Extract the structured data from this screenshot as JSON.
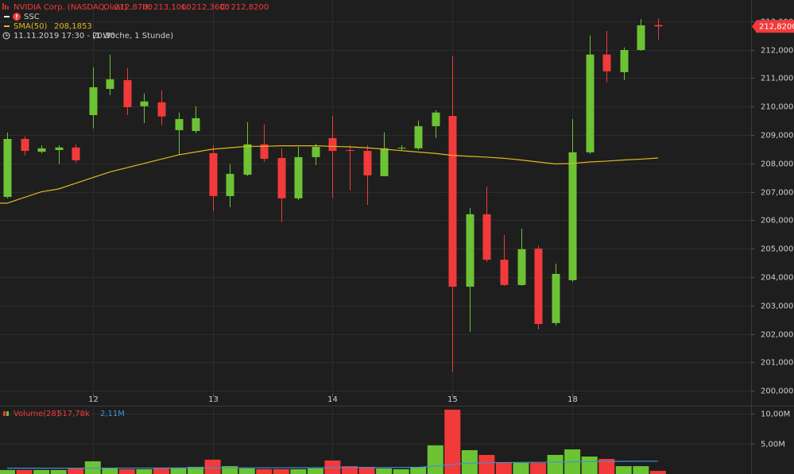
{
  "chart_data": [
    {
      "type": "candlestick",
      "title": "NVIDIA Corp. (NASDAQ, last)",
      "ohlc_labels": [
        "O: 212,8700",
        "H: 213,1000",
        "L: 212,3600",
        "C: 212,8200"
      ],
      "indicator": "SSC",
      "period": "11.11.2019 17:30 - 20:30",
      "interval": "(1 Woche, 1 Stunde)",
      "up_color": "#6cc334",
      "down_color": "#f23a3a",
      "categories": [
        null,
        null,
        null,
        null,
        null,
        "12",
        null,
        null,
        null,
        null,
        null,
        null,
        "13",
        null,
        null,
        null,
        null,
        null,
        null,
        "14",
        null,
        null,
        null,
        null,
        null,
        null,
        "15",
        null,
        null,
        null,
        null,
        null,
        null,
        "18",
        null,
        null,
        null,
        null,
        null
      ],
      "open": [
        206.82,
        208.86,
        208.41,
        208.47,
        208.56,
        209.7,
        210.62,
        210.93,
        210.01,
        210.15,
        209.17,
        209.14,
        208.36,
        206.85,
        207.6,
        208.67,
        208.19,
        206.77,
        208.22,
        208.89,
        208.47,
        208.44,
        207.55,
        208.53,
        208.53,
        209.31,
        209.67,
        203.66,
        206.21,
        204.61,
        203.72,
        205.0,
        202.38,
        203.89,
        208.39,
        211.83,
        211.21,
        211.99,
        212.87
      ],
      "high": [
        209.09,
        208.95,
        208.64,
        208.64,
        208.67,
        211.38,
        211.83,
        211.35,
        210.46,
        210.57,
        209.79,
        210.01,
        208.64,
        207.97,
        209.45,
        209.37,
        208.53,
        208.58,
        208.69,
        209.67,
        208.64,
        208.64,
        209.09,
        208.64,
        209.51,
        209.87,
        211.77,
        206.43,
        207.18,
        205.48,
        205.7,
        205.09,
        204.47,
        209.56,
        212.5,
        212.66,
        212.08,
        213.08,
        213.1
      ],
      "low": [
        206.77,
        208.28,
        208.36,
        207.97,
        208.02,
        209.23,
        210.4,
        209.7,
        209.42,
        209.34,
        208.3,
        209.06,
        206.32,
        206.46,
        207.55,
        208.05,
        205.93,
        206.71,
        207.94,
        206.77,
        207.05,
        206.54,
        207.55,
        208.45,
        208.47,
        208.89,
        200.67,
        202.07,
        204.53,
        203.69,
        203.69,
        202.15,
        202.29,
        203.83,
        208.33,
        210.85,
        210.93,
        211.96,
        212.36
      ],
      "close": [
        208.86,
        208.44,
        208.53,
        208.56,
        208.11,
        210.68,
        210.96,
        209.98,
        210.18,
        209.65,
        209.56,
        209.59,
        206.85,
        207.63,
        208.67,
        208.16,
        206.77,
        208.22,
        208.58,
        208.44,
        208.44,
        207.58,
        208.53,
        208.55,
        209.31,
        209.79,
        203.66,
        206.21,
        204.61,
        203.72,
        204.98,
        202.35,
        204.11,
        208.39,
        211.83,
        211.24,
        211.99,
        212.86,
        212.82
      ],
      "series": [
        {
          "name": "SMA(50)",
          "last_label": "208,1853",
          "color": "#e3b81c",
          "values": [
            206.6,
            206.8,
            207.0,
            207.1,
            207.3,
            207.5,
            207.7,
            207.85,
            208.0,
            208.15,
            208.3,
            208.4,
            208.5,
            208.55,
            208.6,
            208.6,
            208.62,
            208.62,
            208.62,
            208.6,
            208.58,
            208.55,
            208.5,
            208.45,
            208.4,
            208.35,
            208.28,
            208.25,
            208.22,
            208.18,
            208.12,
            208.05,
            207.98,
            208.0,
            208.05,
            208.08,
            208.12,
            208.15,
            208.19
          ]
        }
      ],
      "last_price": 212.82,
      "last_price_label": "212,8200",
      "ylim": [
        199.5,
        213.75
      ],
      "yticks": [
        {
          "value": 200,
          "label": "200,0000"
        },
        {
          "value": 201,
          "label": "201,0000"
        },
        {
          "value": 202,
          "label": "202,0000"
        },
        {
          "value": 203,
          "label": "203,0000"
        },
        {
          "value": 204,
          "label": "204,0000"
        },
        {
          "value": 205,
          "label": "205,0000"
        },
        {
          "value": 206,
          "label": "206,0000"
        },
        {
          "value": 207,
          "label": "207,0000"
        },
        {
          "value": 208,
          "label": "208,0000"
        },
        {
          "value": 209,
          "label": "209,0000"
        },
        {
          "value": 210,
          "label": "210,0000"
        },
        {
          "value": 211,
          "label": "211,0000"
        },
        {
          "value": 212,
          "label": "212,0000"
        },
        {
          "value": 213,
          "label": "213,0000"
        }
      ],
      "grid": true
    },
    {
      "type": "bar",
      "title": "Volume(28)",
      "last_value_label": "517,78k",
      "values": [
        0.66,
        0.66,
        0.66,
        0.66,
        0.92,
        2.1,
        0.92,
        0.79,
        0.79,
        0.92,
        0.92,
        1.18,
        2.37,
        1.3,
        0.92,
        0.79,
        0.79,
        0.79,
        0.92,
        2.24,
        1.3,
        1.18,
        0.92,
        0.79,
        1.18,
        4.74,
        10.66,
        3.95,
        3.16,
        1.97,
        1.84,
        1.84,
        3.16,
        4.08,
        2.89,
        2.5,
        1.3,
        1.3,
        0.51778
      ],
      "series": [
        {
          "name": "2,11M",
          "color": "#3d93d6",
          "values": [
            0.95,
            0.95,
            0.95,
            0.95,
            0.96,
            0.97,
            0.98,
            0.98,
            0.98,
            0.99,
            1.0,
            1.0,
            1.02,
            1.03,
            1.03,
            1.03,
            1.03,
            1.04,
            1.04,
            1.05,
            1.06,
            1.06,
            1.07,
            1.08,
            1.1,
            1.3,
            1.6,
            1.8,
            1.85,
            1.9,
            1.93,
            1.95,
            1.98,
            2.02,
            2.05,
            2.08,
            2.1,
            2.11,
            2.11
          ]
        }
      ],
      "ylim": [
        0,
        11.05
      ],
      "yticks": [
        {
          "value": 5,
          "label": "5,00M"
        },
        {
          "value": 10,
          "label": "10,00M"
        }
      ],
      "grid": true
    }
  ]
}
